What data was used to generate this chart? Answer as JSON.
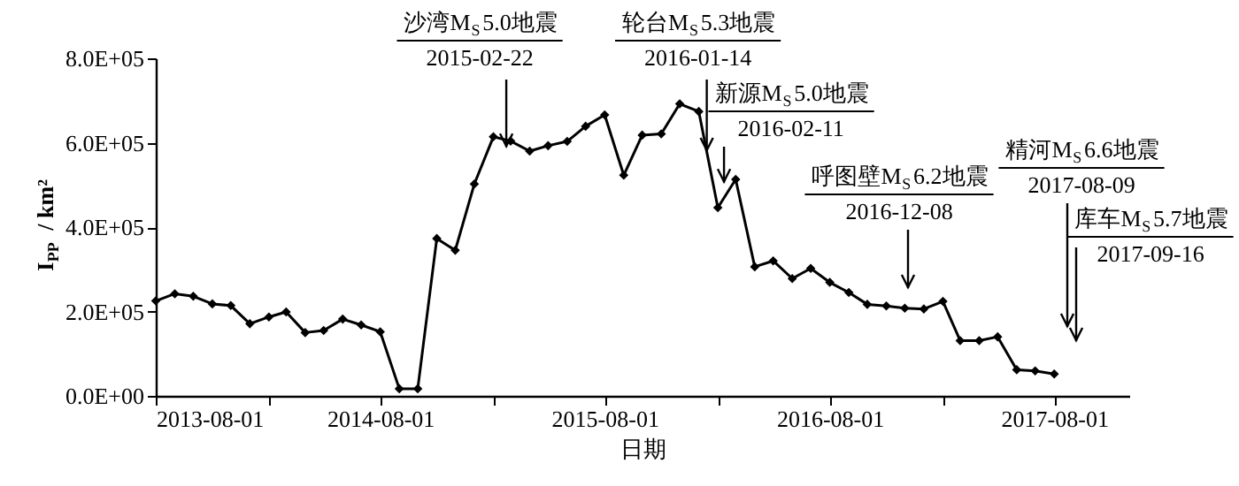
{
  "chart_data": {
    "type": "line",
    "xlabel": "日期",
    "ylabel": "I$_{PP}$ / km²",
    "marker": "diamond",
    "grid": false,
    "x": [
      "2013-08-01",
      "2013-09-01",
      "2013-10-01",
      "2013-11-01",
      "2013-12-01",
      "2014-01-01",
      "2014-02-01",
      "2014-03-01",
      "2014-04-01",
      "2014-05-01",
      "2014-06-01",
      "2014-07-01",
      "2014-08-01",
      "2014-09-01",
      "2014-10-01",
      "2014-11-01",
      "2014-12-01",
      "2015-01-01",
      "2015-02-01",
      "2015-03-01",
      "2015-04-01",
      "2015-05-01",
      "2015-06-01",
      "2015-07-01",
      "2015-08-01",
      "2015-09-01",
      "2015-10-01",
      "2015-11-01",
      "2015-12-01",
      "2016-01-01",
      "2016-02-01",
      "2016-03-01",
      "2016-04-01",
      "2016-05-01",
      "2016-06-01",
      "2016-07-01",
      "2016-08-01",
      "2016-09-01",
      "2016-10-01",
      "2016-11-01",
      "2016-12-01",
      "2017-01-01",
      "2017-02-01",
      "2017-03-01",
      "2017-04-01",
      "2017-05-01",
      "2017-06-01",
      "2017-07-01",
      "2017-08-01"
    ],
    "series": [
      {
        "color": "#000000",
        "values": [
          225000,
          242000,
          236000,
          218000,
          214000,
          171000,
          187000,
          199000,
          150000,
          155000,
          182000,
          168000,
          152000,
          17000,
          17000,
          373000,
          345000,
          502000,
          614000,
          604000,
          580000,
          593000,
          603000,
          639000,
          666000,
          523000,
          618000,
          621000,
          692000,
          674000,
          446000,
          513000,
          306000,
          320000,
          278000,
          302000,
          269000,
          245000,
          217000,
          213000,
          208000,
          206000,
          224000,
          131000,
          131000,
          140000,
          62000,
          59000,
          52000
        ]
      }
    ],
    "xlim": [
      "2013-08-01",
      "2017-12-01"
    ],
    "xticks": [
      {
        "value": "2013-08-01",
        "label": "2013-08-01"
      },
      {
        "value": "2014-02-01",
        "label": null
      },
      {
        "value": "2014-08-01",
        "label": "2014-08-01"
      },
      {
        "value": "2015-02-01",
        "label": null
      },
      {
        "value": "2015-08-01",
        "label": "2015-08-01"
      },
      {
        "value": "2016-02-01",
        "label": null
      },
      {
        "value": "2016-08-01",
        "label": "2016-08-01"
      },
      {
        "value": "2017-02-01",
        "label": null
      },
      {
        "value": "2017-08-01",
        "label": "2017-08-01"
      }
    ],
    "ylim": [
      0,
      800000
    ],
    "yticks": [
      {
        "value": 0,
        "label": "0.0E+00"
      },
      {
        "value": 200000,
        "label": "2.0E+05"
      },
      {
        "value": 400000,
        "label": "4.0E+05"
      },
      {
        "value": 600000,
        "label": "6.0E+05"
      },
      {
        "value": 800000,
        "label": "8.0E+05"
      }
    ],
    "annotations": [
      {
        "text": "沙湾M$_{S}$5.0地震\n2015-02-22",
        "x": "2015-02-22",
        "y": 590000
      },
      {
        "text": "轮台M$_{S}$5.3地震\n2016-01-14",
        "x": "2016-01-14",
        "y": 580000
      },
      {
        "text": "新源M$_{S}$5.0地震\n2016-02-11",
        "x": "2016-02-11",
        "y": 506000
      },
      "呼图壁M$_{S}$6.2地震\n2016-12-08",
      "精河M$_{S}$6.6地震\n2017-08-09",
      "库车M$_{S}$5.7地震\n2017-09-16"
    ]
  }
}
